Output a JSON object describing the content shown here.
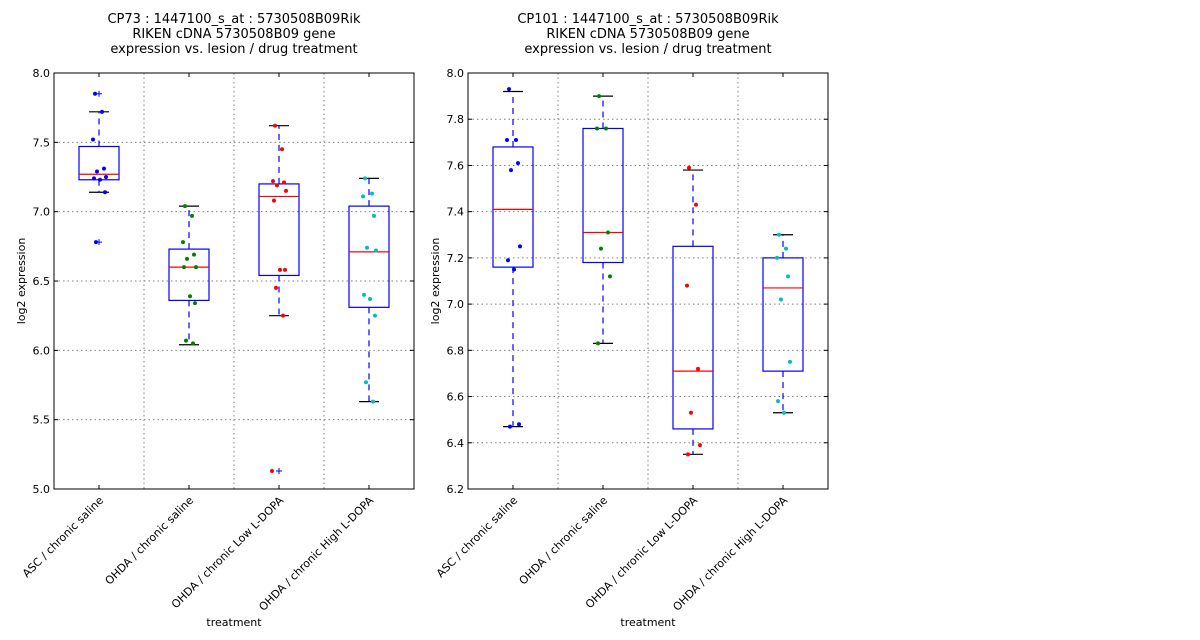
{
  "chart_data": [
    {
      "type": "box",
      "title_lines": [
        "CP73 : 1447100_s_at : 5730508B09Rik",
        "RIKEN cDNA 5730508B09 gene",
        "expression vs. lesion / drug treatment"
      ],
      "xlabel": "treatment",
      "ylabel": "log2 expression",
      "ylim": [
        5.0,
        8.0
      ],
      "yticks": [
        "5.0",
        "5.5",
        "6.0",
        "6.5",
        "7.0",
        "7.5",
        "8.0"
      ],
      "ytick_values": [
        5.0,
        5.5,
        6.0,
        6.5,
        7.0,
        7.5,
        8.0
      ],
      "grid": true,
      "categories": [
        "ASC / chronic saline",
        "OHDA / chronic saline",
        "OHDA / chronic Low L-DOPA",
        "OHDA / chronic High L-DOPA"
      ],
      "groups": [
        {
          "color": "#0000ff",
          "q1": 7.23,
          "median": 7.27,
          "q3": 7.47,
          "whisker_low": 7.14,
          "whisker_high": 7.72,
          "fliers": [
            7.85,
            6.78
          ],
          "points": [
            7.85,
            7.72,
            7.52,
            7.31,
            7.29,
            7.25,
            7.24,
            7.23,
            7.14,
            6.78
          ]
        },
        {
          "color": "#008000",
          "q1": 6.36,
          "median": 6.6,
          "q3": 6.73,
          "whisker_low": 6.04,
          "whisker_high": 7.04,
          "fliers": [],
          "points": [
            7.04,
            6.97,
            6.78,
            6.69,
            6.66,
            6.6,
            6.6,
            6.39,
            6.34,
            6.07,
            6.05
          ]
        },
        {
          "color": "#ff0000",
          "q1": 6.54,
          "median": 7.11,
          "q3": 7.2,
          "whisker_low": 6.25,
          "whisker_high": 7.62,
          "fliers": [
            5.13
          ],
          "points": [
            7.62,
            7.45,
            7.22,
            7.21,
            7.19,
            7.15,
            7.08,
            6.58,
            6.58,
            6.45,
            6.25,
            5.13
          ]
        },
        {
          "color": "#00bfbf",
          "q1": 6.31,
          "median": 6.71,
          "q3": 7.04,
          "whisker_low": 5.63,
          "whisker_high": 7.24,
          "fliers": [],
          "points": [
            7.24,
            7.13,
            7.11,
            6.97,
            6.74,
            6.72,
            6.4,
            6.37,
            6.25,
            5.77,
            5.63
          ]
        }
      ]
    },
    {
      "type": "box",
      "title_lines": [
        "CP101 : 1447100_s_at : 5730508B09Rik",
        "RIKEN cDNA 5730508B09 gene",
        "expression vs. lesion / drug treatment"
      ],
      "xlabel": "treatment",
      "ylabel": "log2 expression",
      "ylim": [
        6.2,
        8.0
      ],
      "yticks": [
        "6.2",
        "6.4",
        "6.6",
        "6.8",
        "7.0",
        "7.2",
        "7.4",
        "7.6",
        "7.8",
        "8.0"
      ],
      "ytick_values": [
        6.2,
        6.4,
        6.6,
        6.8,
        7.0,
        7.2,
        7.4,
        7.6,
        7.8,
        8.0
      ],
      "grid": true,
      "categories": [
        "ASC / chronic saline",
        "OHDA / chronic saline",
        "OHDA / chronic Low L-DOPA",
        "OHDA / chronic High L-DOPA"
      ],
      "groups": [
        {
          "color": "#0000ff",
          "q1": 7.16,
          "median": 7.41,
          "q3": 7.68,
          "whisker_low": 6.47,
          "whisker_high": 7.92,
          "fliers": [],
          "points": [
            7.93,
            7.71,
            7.71,
            7.61,
            7.58,
            7.25,
            7.19,
            7.15,
            6.48,
            6.47
          ]
        },
        {
          "color": "#008000",
          "q1": 7.18,
          "median": 7.31,
          "q3": 7.76,
          "whisker_low": 6.83,
          "whisker_high": 7.9,
          "fliers": [],
          "points": [
            7.9,
            7.76,
            7.76,
            7.31,
            7.24,
            7.12,
            6.83
          ]
        },
        {
          "color": "#ff0000",
          "q1": 6.46,
          "median": 6.71,
          "q3": 7.25,
          "whisker_low": 6.35,
          "whisker_high": 7.58,
          "fliers": [],
          "points": [
            7.59,
            7.43,
            7.08,
            6.72,
            6.53,
            6.39,
            6.35
          ]
        },
        {
          "color": "#00bfbf",
          "q1": 6.71,
          "median": 7.07,
          "q3": 7.2,
          "whisker_low": 6.53,
          "whisker_high": 7.3,
          "fliers": [],
          "points": [
            7.3,
            7.24,
            7.2,
            7.12,
            7.02,
            6.75,
            6.58,
            6.53
          ]
        }
      ]
    }
  ]
}
